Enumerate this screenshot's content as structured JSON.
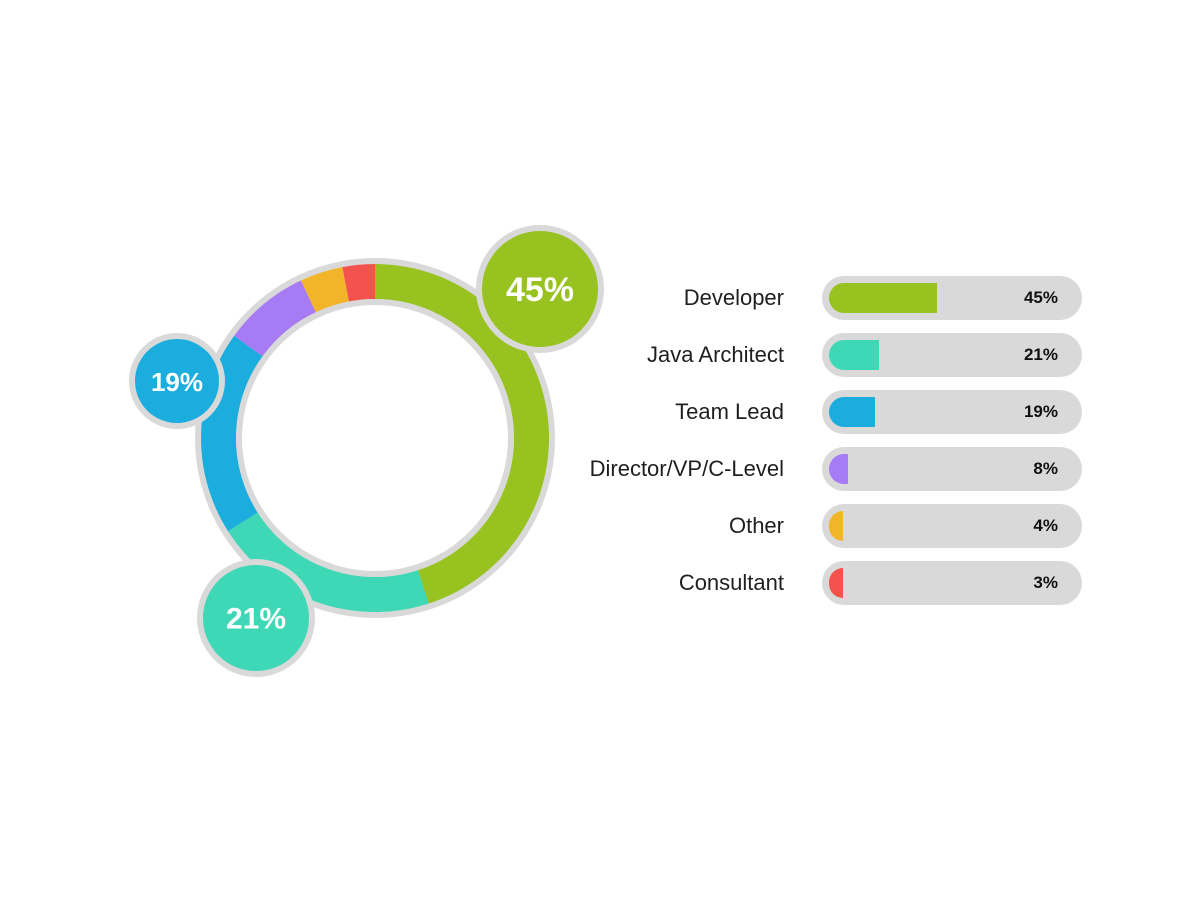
{
  "chart_data": {
    "type": "pie",
    "series": [
      {
        "name": "Developer",
        "value": 45,
        "label": "45%",
        "color": "#97c21f"
      },
      {
        "name": "Java Architect",
        "value": 21,
        "label": "21%",
        "color": "#3ed8b7"
      },
      {
        "name": "Team Lead",
        "value": 19,
        "label": "19%",
        "color": "#1badde"
      },
      {
        "name": "Director/VP/C-Level",
        "value": 8,
        "label": "8%",
        "color": "#a77bf3"
      },
      {
        "name": "Other",
        "value": 4,
        "label": "4%",
        "color": "#f2b52a"
      },
      {
        "name": "Consultant",
        "value": 3,
        "label": "3%",
        "color": "#f4524d"
      }
    ],
    "highlighted_slices": [
      "Developer",
      "Java Architect",
      "Team Lead"
    ],
    "legend_placement": "right",
    "track_color": "#d9d9d9"
  }
}
